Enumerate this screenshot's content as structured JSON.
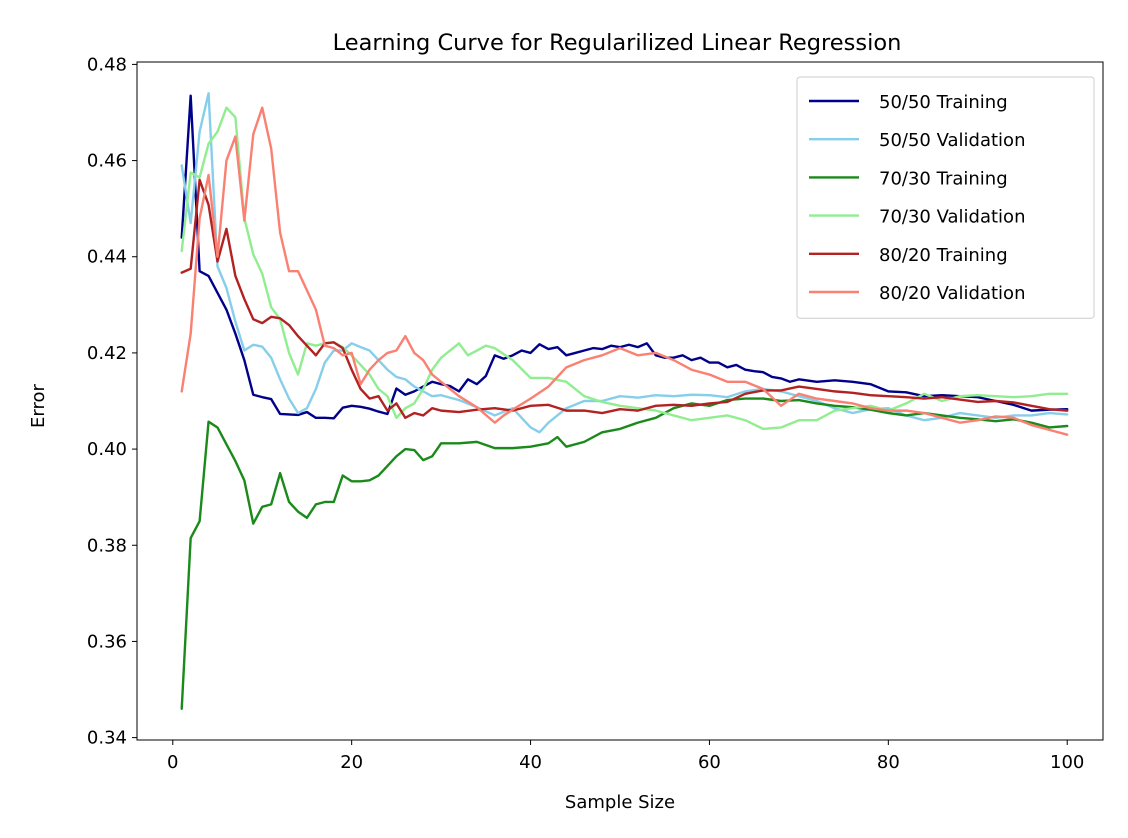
{
  "chart_data": {
    "type": "line",
    "title": "Learning Curve for Regularilized Linear Regression",
    "xlabel": "Sample Size",
    "ylabel": "Error",
    "xlim": [
      -4,
      104
    ],
    "ylim": [
      0.3395,
      0.4805
    ],
    "xticks": [
      0,
      20,
      40,
      60,
      80,
      100
    ],
    "yticks": [
      0.34,
      0.36,
      0.38,
      0.4,
      0.42,
      0.44,
      0.46,
      0.48
    ],
    "ytick_labels": [
      "0.34",
      "0.36",
      "0.38",
      "0.40",
      "0.42",
      "0.44",
      "0.46",
      "0.48"
    ],
    "grid": false,
    "legend_position": "top-right",
    "series": [
      {
        "name": "50/50 Training",
        "color": "#00008b",
        "x": [
          1,
          2,
          3,
          4,
          5,
          6,
          7,
          8,
          9,
          10,
          11,
          12,
          13,
          14,
          15,
          16,
          17,
          18,
          19,
          20,
          21,
          22,
          23,
          24,
          25,
          26,
          27,
          28,
          29,
          30,
          31,
          32,
          33,
          34,
          35,
          36,
          37,
          38,
          39,
          40,
          41,
          42,
          43,
          44,
          45,
          46,
          47,
          48,
          49,
          50,
          51,
          52,
          53,
          54,
          55,
          56,
          57,
          58,
          59,
          60,
          61,
          62,
          63,
          64,
          65,
          66,
          67,
          68,
          69,
          70,
          72,
          74,
          76,
          78,
          80,
          82,
          84,
          86,
          88,
          90,
          92,
          94,
          96,
          98,
          100
        ],
        "y": [
          0.444,
          0.4735,
          0.437,
          0.436,
          0.4325,
          0.429,
          0.424,
          0.4185,
          0.4113,
          0.4108,
          0.4104,
          0.4073,
          0.4072,
          0.4071,
          0.4077,
          0.4065,
          0.4065,
          0.4064,
          0.4086,
          0.409,
          0.4088,
          0.4084,
          0.4078,
          0.4073,
          0.4126,
          0.4113,
          0.412,
          0.413,
          0.414,
          0.4135,
          0.4131,
          0.412,
          0.4145,
          0.4135,
          0.4152,
          0.4195,
          0.4188,
          0.4195,
          0.4205,
          0.42,
          0.4218,
          0.4208,
          0.4212,
          0.4195,
          0.42,
          0.4205,
          0.421,
          0.4208,
          0.4215,
          0.4212,
          0.4217,
          0.4212,
          0.422,
          0.4195,
          0.419,
          0.419,
          0.4195,
          0.4185,
          0.419,
          0.418,
          0.418,
          0.417,
          0.4175,
          0.4165,
          0.4162,
          0.416,
          0.415,
          0.4147,
          0.414,
          0.4145,
          0.414,
          0.4143,
          0.414,
          0.4135,
          0.412,
          0.4118,
          0.411,
          0.4112,
          0.411,
          0.4108,
          0.41,
          0.4092,
          0.408,
          0.4082,
          0.4083
        ]
      },
      {
        "name": "50/50 Validation",
        "color": "#87ceeb",
        "x": [
          1,
          2,
          3,
          4,
          5,
          6,
          7,
          8,
          9,
          10,
          11,
          12,
          13,
          14,
          15,
          16,
          17,
          18,
          19,
          20,
          21,
          22,
          23,
          24,
          25,
          26,
          27,
          28,
          29,
          30,
          32,
          34,
          36,
          38,
          40,
          41,
          42,
          44,
          46,
          48,
          50,
          52,
          54,
          56,
          58,
          60,
          62,
          64,
          66,
          68,
          70,
          72,
          74,
          76,
          78,
          80,
          82,
          84,
          86,
          88,
          90,
          92,
          94,
          96,
          98,
          100
        ],
        "y": [
          0.459,
          0.447,
          0.466,
          0.474,
          0.438,
          0.4335,
          0.4265,
          0.4205,
          0.4217,
          0.4213,
          0.419,
          0.4145,
          0.4105,
          0.4075,
          0.4085,
          0.4125,
          0.418,
          0.4205,
          0.4205,
          0.422,
          0.4212,
          0.4205,
          0.4185,
          0.4165,
          0.415,
          0.4145,
          0.413,
          0.412,
          0.411,
          0.4112,
          0.4102,
          0.4087,
          0.407,
          0.4085,
          0.4045,
          0.4035,
          0.4055,
          0.4085,
          0.41,
          0.41,
          0.411,
          0.4107,
          0.4112,
          0.411,
          0.4113,
          0.4112,
          0.4108,
          0.412,
          0.4125,
          0.412,
          0.411,
          0.41,
          0.4085,
          0.4075,
          0.4083,
          0.4085,
          0.407,
          0.406,
          0.4065,
          0.4075,
          0.407,
          0.4065,
          0.407,
          0.407,
          0.4075,
          0.4072
        ]
      },
      {
        "name": "70/30 Training",
        "color": "#1a8a1a",
        "x": [
          1,
          2,
          3,
          4,
          5,
          6,
          7,
          8,
          9,
          10,
          11,
          12,
          13,
          14,
          15,
          16,
          17,
          18,
          19,
          20,
          21,
          22,
          23,
          24,
          25,
          26,
          27,
          28,
          29,
          30,
          32,
          34,
          36,
          38,
          40,
          42,
          43,
          44,
          46,
          48,
          50,
          52,
          54,
          56,
          58,
          60,
          62,
          64,
          66,
          68,
          70,
          72,
          74,
          76,
          78,
          80,
          82,
          84,
          86,
          88,
          90,
          92,
          94,
          96,
          98,
          100
        ],
        "y": [
          0.346,
          0.3815,
          0.385,
          0.4057,
          0.4045,
          0.401,
          0.3975,
          0.3935,
          0.3845,
          0.388,
          0.3885,
          0.395,
          0.389,
          0.387,
          0.3857,
          0.3885,
          0.389,
          0.389,
          0.3945,
          0.3933,
          0.3933,
          0.3935,
          0.3945,
          0.3965,
          0.3985,
          0.4,
          0.3998,
          0.3977,
          0.3985,
          0.4012,
          0.4012,
          0.4015,
          0.4002,
          0.4002,
          0.4005,
          0.4012,
          0.4025,
          0.4005,
          0.4015,
          0.4035,
          0.4042,
          0.4055,
          0.4065,
          0.4085,
          0.4095,
          0.409,
          0.4102,
          0.4105,
          0.4105,
          0.41,
          0.4102,
          0.4095,
          0.409,
          0.4087,
          0.4082,
          0.4075,
          0.407,
          0.4075,
          0.407,
          0.4065,
          0.4062,
          0.4058,
          0.4062,
          0.4055,
          0.4045,
          0.4048
        ]
      },
      {
        "name": "70/30 Validation",
        "color": "#90ee90",
        "x": [
          1,
          2,
          3,
          4,
          5,
          6,
          7,
          8,
          9,
          10,
          11,
          12,
          13,
          14,
          15,
          16,
          17,
          18,
          19,
          20,
          21,
          22,
          23,
          24,
          25,
          26,
          27,
          28,
          29,
          30,
          31,
          32,
          33,
          34,
          35,
          36,
          38,
          40,
          42,
          44,
          46,
          48,
          50,
          52,
          54,
          56,
          58,
          60,
          62,
          64,
          66,
          68,
          70,
          72,
          74,
          76,
          78,
          80,
          82,
          84,
          86,
          88,
          90,
          92,
          94,
          96,
          98,
          100
        ],
        "y": [
          0.4412,
          0.4575,
          0.4565,
          0.4635,
          0.466,
          0.471,
          0.469,
          0.448,
          0.4405,
          0.4365,
          0.4295,
          0.427,
          0.42,
          0.4155,
          0.422,
          0.4215,
          0.422,
          0.4222,
          0.4212,
          0.4195,
          0.4175,
          0.4155,
          0.4125,
          0.411,
          0.4065,
          0.4085,
          0.4095,
          0.4125,
          0.4165,
          0.419,
          0.4205,
          0.422,
          0.4195,
          0.4205,
          0.4215,
          0.421,
          0.4185,
          0.4148,
          0.4148,
          0.414,
          0.411,
          0.4098,
          0.409,
          0.4085,
          0.408,
          0.407,
          0.406,
          0.4065,
          0.407,
          0.406,
          0.4042,
          0.4045,
          0.406,
          0.406,
          0.408,
          0.4085,
          0.409,
          0.408,
          0.4095,
          0.4115,
          0.41,
          0.411,
          0.4112,
          0.411,
          0.4108,
          0.411,
          0.4115,
          0.4115
        ]
      },
      {
        "name": "80/20 Training",
        "color": "#b22222",
        "x": [
          1,
          2,
          3,
          4,
          5,
          6,
          7,
          8,
          9,
          10,
          11,
          12,
          13,
          14,
          15,
          16,
          17,
          18,
          19,
          20,
          21,
          22,
          23,
          24,
          25,
          26,
          27,
          28,
          29,
          30,
          32,
          34,
          36,
          38,
          40,
          42,
          44,
          46,
          48,
          50,
          52,
          54,
          56,
          58,
          60,
          62,
          64,
          66,
          68,
          70,
          72,
          74,
          76,
          78,
          80,
          82,
          84,
          86,
          88,
          90,
          92,
          94,
          96,
          98,
          100
        ],
        "y": [
          0.4367,
          0.4375,
          0.456,
          0.4508,
          0.439,
          0.4458,
          0.436,
          0.4312,
          0.427,
          0.4262,
          0.4275,
          0.4272,
          0.4258,
          0.4235,
          0.4215,
          0.4195,
          0.422,
          0.4222,
          0.421,
          0.4165,
          0.4125,
          0.4105,
          0.411,
          0.408,
          0.4095,
          0.4065,
          0.4075,
          0.407,
          0.4085,
          0.408,
          0.4077,
          0.4082,
          0.4085,
          0.408,
          0.409,
          0.4092,
          0.408,
          0.408,
          0.4075,
          0.4083,
          0.408,
          0.409,
          0.4092,
          0.409,
          0.4095,
          0.4098,
          0.4115,
          0.4122,
          0.4122,
          0.413,
          0.4125,
          0.412,
          0.4117,
          0.4112,
          0.411,
          0.4108,
          0.4105,
          0.4108,
          0.4103,
          0.4098,
          0.41,
          0.4097,
          0.409,
          0.4083,
          0.408
        ]
      },
      {
        "name": "80/20 Validation",
        "color": "#fa8072",
        "x": [
          1,
          2,
          3,
          4,
          5,
          6,
          7,
          8,
          9,
          10,
          11,
          12,
          13,
          14,
          15,
          16,
          17,
          18,
          19,
          20,
          21,
          22,
          23,
          24,
          25,
          26,
          27,
          28,
          29,
          30,
          32,
          34,
          36,
          37,
          38,
          40,
          42,
          44,
          46,
          48,
          50,
          52,
          54,
          56,
          58,
          60,
          62,
          64,
          66,
          68,
          70,
          72,
          74,
          76,
          78,
          80,
          82,
          84,
          86,
          88,
          90,
          92,
          94,
          96,
          98,
          100
        ],
        "y": [
          0.412,
          0.424,
          0.448,
          0.457,
          0.44,
          0.46,
          0.465,
          0.4475,
          0.4655,
          0.471,
          0.4625,
          0.445,
          0.437,
          0.437,
          0.433,
          0.429,
          0.4215,
          0.421,
          0.4195,
          0.42,
          0.4135,
          0.4165,
          0.4185,
          0.42,
          0.4205,
          0.4235,
          0.42,
          0.4185,
          0.4155,
          0.414,
          0.411,
          0.4087,
          0.4055,
          0.407,
          0.4082,
          0.4105,
          0.413,
          0.417,
          0.4185,
          0.4195,
          0.421,
          0.4195,
          0.42,
          0.4185,
          0.4165,
          0.4155,
          0.414,
          0.414,
          0.4125,
          0.409,
          0.4115,
          0.4105,
          0.41,
          0.4095,
          0.4085,
          0.408,
          0.408,
          0.4075,
          0.4065,
          0.4055,
          0.406,
          0.4068,
          0.4065,
          0.405,
          0.404,
          0.403
        ]
      }
    ]
  }
}
